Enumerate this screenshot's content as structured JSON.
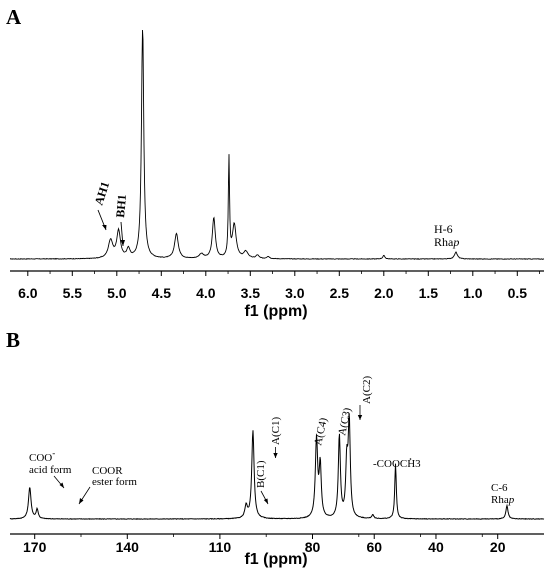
{
  "chart_data": [
    {
      "type": "line",
      "panel_label": "A",
      "xlabel": "f1 (ppm)",
      "xlim": [
        6.2,
        0.2
      ],
      "x_reversed": true,
      "xticks": [
        "6.0",
        "5.5",
        "5.0",
        "4.5",
        "4.0",
        "3.5",
        "3.0",
        "2.5",
        "2.0",
        "1.5",
        "1.0",
        "0.5"
      ],
      "tick_values": [
        6.0,
        5.5,
        5.0,
        4.5,
        4.0,
        3.5,
        3.0,
        2.5,
        2.0,
        1.5,
        1.0,
        0.5
      ],
      "ylim": [
        0,
        1
      ],
      "peaks": [
        {
          "x": 5.07,
          "h": 0.08,
          "w": 0.03
        },
        {
          "x": 4.98,
          "h": 0.12,
          "w": 0.025
        },
        {
          "x": 4.87,
          "h": 0.04,
          "w": 0.02
        },
        {
          "x": 4.71,
          "h": 1.05,
          "w": 0.015
        },
        {
          "x": 4.33,
          "h": 0.11,
          "w": 0.025
        },
        {
          "x": 4.05,
          "h": 0.02,
          "w": 0.03
        },
        {
          "x": 3.91,
          "h": 0.18,
          "w": 0.02
        },
        {
          "x": 3.74,
          "h": 0.44,
          "w": 0.008
        },
        {
          "x": 3.68,
          "h": 0.15,
          "w": 0.025
        },
        {
          "x": 3.55,
          "h": 0.03,
          "w": 0.03
        },
        {
          "x": 3.42,
          "h": 0.015,
          "w": 0.02
        },
        {
          "x": 3.3,
          "h": 0.01,
          "w": 0.02
        },
        {
          "x": 2.0,
          "h": 0.015,
          "w": 0.015
        },
        {
          "x": 1.19,
          "h": 0.03,
          "w": 0.02
        }
      ],
      "annotations": [
        {
          "id": "ah1",
          "text": "AH1",
          "at_x": 4.98
        },
        {
          "id": "bh1",
          "text": "BH1",
          "at_x": 4.87
        },
        {
          "id": "h6",
          "lines": [
            "H-6",
            "Rha",
            "p"
          ],
          "at_x": 1.19
        }
      ]
    },
    {
      "type": "line",
      "panel_label": "B",
      "xlabel": "f1 (ppm)",
      "xlim": [
        178,
        5
      ],
      "x_reversed": true,
      "xticks": [
        "170",
        "140",
        "110",
        "80",
        "60",
        "40",
        "20"
      ],
      "tick_values": [
        170,
        140,
        110,
        80,
        60,
        40,
        20
      ],
      "ylim": [
        0,
        1
      ],
      "peaks": [
        {
          "x": 171.6,
          "h": 0.33,
          "w": 0.5
        },
        {
          "x": 169.2,
          "h": 0.1,
          "w": 0.4
        },
        {
          "x": 101.5,
          "h": 0.13,
          "w": 0.5
        },
        {
          "x": 99.3,
          "h": 0.93,
          "w": 0.45
        },
        {
          "x": 78.7,
          "h": 0.83,
          "w": 0.45
        },
        {
          "x": 77.5,
          "h": 0.55,
          "w": 0.4
        },
        {
          "x": 71.3,
          "h": 0.87,
          "w": 0.4
        },
        {
          "x": 68.9,
          "h": 0.55,
          "w": 0.4
        },
        {
          "x": 68.1,
          "h": 1.0,
          "w": 0.4
        },
        {
          "x": 60.5,
          "h": 0.04,
          "w": 0.4
        },
        {
          "x": 53.1,
          "h": 0.58,
          "w": 0.3
        },
        {
          "x": 17.0,
          "h": 0.14,
          "w": 0.4
        }
      ],
      "annotations": [
        {
          "id": "coo",
          "lines": [
            "COO",
            "-",
            "acid form"
          ],
          "at_x": 171.6
        },
        {
          "id": "coor",
          "lines": [
            "COOR",
            "ester form"
          ],
          "at_x": 169.2
        },
        {
          "id": "bc1",
          "text": "B(C1)",
          "at_x": 101.5
        },
        {
          "id": "ac1",
          "text": "A(C1)",
          "at_x": 99.3
        },
        {
          "id": "ac4",
          "text": "A(C4)",
          "at_x": 78.7
        },
        {
          "id": "ac3",
          "text": "A(C3)",
          "at_x": 71.3
        },
        {
          "id": "ac2",
          "text": "A(C2)",
          "at_x": 68.1
        },
        {
          "id": "cooch3",
          "text": "-COOCH3",
          "at_x": 53.1
        },
        {
          "id": "c6",
          "lines": [
            "C-6",
            "Rha",
            "p"
          ],
          "at_x": 17.0
        }
      ]
    }
  ]
}
